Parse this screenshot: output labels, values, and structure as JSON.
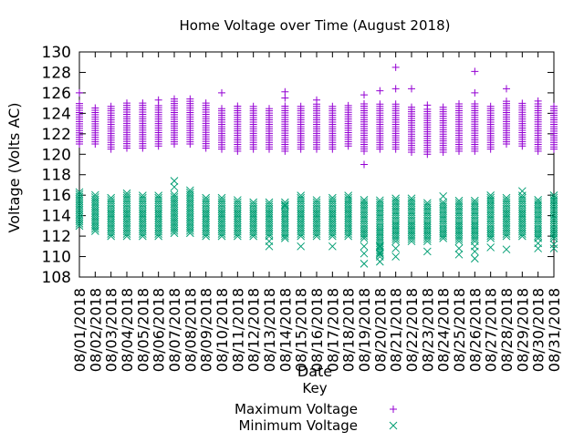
{
  "chart_data": {
    "type": "scatter",
    "title": "Home Voltage over Time (August 2018)",
    "xlabel": "Date",
    "ylabel": "Voltage (Volts AC)",
    "ylim": [
      108,
      130
    ],
    "yticks": [
      108,
      110,
      112,
      114,
      116,
      118,
      120,
      122,
      124,
      126,
      128,
      130
    ],
    "grid": false,
    "legend": {
      "title": "Key",
      "placement": "below-plot"
    },
    "categories": [
      "08/01/2018",
      "08/02/2018",
      "08/03/2018",
      "08/04/2018",
      "08/05/2018",
      "08/06/2018",
      "08/07/2018",
      "08/08/2018",
      "08/09/2018",
      "08/10/2018",
      "08/11/2018",
      "08/12/2018",
      "08/13/2018",
      "08/14/2018",
      "08/15/2018",
      "08/16/2018",
      "08/17/2018",
      "08/18/2018",
      "08/19/2018",
      "08/20/2018",
      "08/21/2018",
      "08/22/2018",
      "08/23/2018",
      "08/24/2018",
      "08/25/2018",
      "08/26/2018",
      "08/27/2018",
      "08/28/2018",
      "08/29/2018",
      "08/30/2018",
      "08/31/2018"
    ],
    "series": [
      {
        "name": "Maximum Voltage",
        "marker": "plus",
        "color": "#9400d3",
        "ranges": [
          [
            121,
            125
          ],
          [
            121,
            124.7
          ],
          [
            120.5,
            124.8
          ],
          [
            120.6,
            125.0
          ],
          [
            120.6,
            125.0
          ],
          [
            120.8,
            124.8
          ],
          [
            121,
            125.2
          ],
          [
            121,
            125.6
          ],
          [
            120.6,
            125.0
          ],
          [
            120.5,
            124.5
          ],
          [
            120.3,
            124.8
          ],
          [
            120.5,
            124.8
          ],
          [
            120.5,
            124.5
          ],
          [
            120.3,
            124.8
          ],
          [
            120.5,
            124.8
          ],
          [
            120.5,
            124.9
          ],
          [
            120.5,
            124.7
          ],
          [
            120.8,
            124.8
          ],
          [
            120.3,
            125.0
          ],
          [
            120.5,
            125.1
          ],
          [
            120.5,
            125.0
          ],
          [
            120.2,
            124.8
          ],
          [
            120.0,
            124.6
          ],
          [
            120.2,
            124.7
          ],
          [
            120.3,
            125.0
          ],
          [
            120.3,
            125.0
          ],
          [
            120.5,
            124.8
          ],
          [
            121.0,
            125.2
          ],
          [
            120.8,
            125.1
          ],
          [
            120.3,
            125.0
          ],
          [
            120.5,
            124.8
          ]
        ],
        "outliers": [
          [
            0,
            126.0
          ],
          [
            5,
            125.3
          ],
          [
            6,
            125.4
          ],
          [
            9,
            126.0
          ],
          [
            13,
            126.1
          ],
          [
            13,
            125.5
          ],
          [
            15,
            125.3
          ],
          [
            18,
            125.8
          ],
          [
            18,
            119.0
          ],
          [
            19,
            126.2
          ],
          [
            20,
            128.5
          ],
          [
            20,
            126.4
          ],
          [
            21,
            126.4
          ],
          [
            22,
            124.8
          ],
          [
            25,
            128.1
          ],
          [
            25,
            126.0
          ],
          [
            27,
            126.4
          ],
          [
            29,
            125.2
          ]
        ]
      },
      {
        "name": "Minimum Voltage",
        "marker": "x",
        "color": "#009e73",
        "ranges": [
          [
            113,
            116.5
          ],
          [
            112.5,
            116.2
          ],
          [
            112,
            115.8
          ],
          [
            112,
            116.2
          ],
          [
            112,
            116
          ],
          [
            112,
            116
          ],
          [
            112.3,
            116.2
          ],
          [
            112.3,
            116.6
          ],
          [
            112,
            115.8
          ],
          [
            112,
            115.8
          ],
          [
            112,
            115.6
          ],
          [
            112,
            115.5
          ],
          [
            112,
            115.5
          ],
          [
            112,
            115.5
          ],
          [
            112,
            116.0
          ],
          [
            112,
            115.6
          ],
          [
            112,
            115.8
          ],
          [
            112,
            116.0
          ],
          [
            111.8,
            115.6
          ],
          [
            110.0,
            115.6
          ],
          [
            111.5,
            115.8
          ],
          [
            111.5,
            115.8
          ],
          [
            111.5,
            115.3
          ],
          [
            111.8,
            115.5
          ],
          [
            111.5,
            115.5
          ],
          [
            111.5,
            115.6
          ],
          [
            111.8,
            116.0
          ],
          [
            112,
            115.8
          ],
          [
            112,
            116.0
          ],
          [
            111.8,
            115.7
          ],
          [
            111.8,
            116.0
          ]
        ],
        "outliers": [
          [
            6,
            117.4
          ],
          [
            6,
            116.8
          ],
          [
            12,
            111.0
          ],
          [
            12,
            111.5
          ],
          [
            13,
            111.8
          ],
          [
            13,
            115.0
          ],
          [
            14,
            111.0
          ],
          [
            16,
            111.0
          ],
          [
            18,
            109.3
          ],
          [
            18,
            110.3
          ],
          [
            18,
            111.0
          ],
          [
            19,
            109.5
          ],
          [
            19,
            110.3
          ],
          [
            19,
            111.0
          ],
          [
            20,
            110.0
          ],
          [
            20,
            110.8
          ],
          [
            22,
            110.5
          ],
          [
            23,
            115.9
          ],
          [
            24,
            110.2
          ],
          [
            24,
            110.8
          ],
          [
            25,
            109.8
          ],
          [
            25,
            110.5
          ],
          [
            25,
            111.0
          ],
          [
            26,
            110.9
          ],
          [
            27,
            110.7
          ],
          [
            28,
            116.4
          ],
          [
            29,
            110.8
          ],
          [
            29,
            111.3
          ],
          [
            30,
            110.8
          ],
          [
            30,
            111.2
          ]
        ]
      }
    ]
  }
}
